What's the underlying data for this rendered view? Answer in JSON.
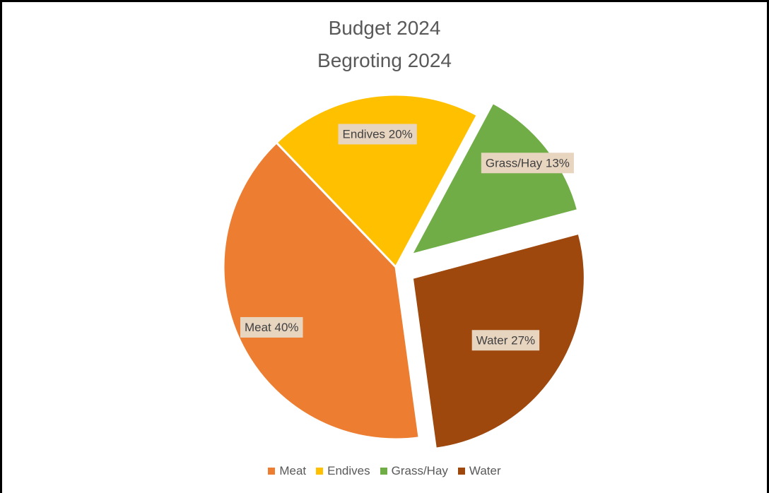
{
  "chart_data": {
    "type": "pie",
    "title": "Budget 2024",
    "subtitle": "Begroting 2024",
    "slices": [
      {
        "name": "Meat",
        "value": 40,
        "label": "Meat 40%",
        "color": "#ED7D31",
        "exploded": false
      },
      {
        "name": "Endives",
        "value": 20,
        "label": "Endives 20%",
        "color": "#FFC000",
        "exploded": false
      },
      {
        "name": "Grass/Hay",
        "value": 13,
        "label": "Grass/Hay 13%",
        "color": "#70AD47",
        "exploded": true
      },
      {
        "name": "Water",
        "value": 27,
        "label": "Water 27%",
        "color": "#9E480E",
        "exploded": true
      }
    ],
    "legend_position": "bottom",
    "label_background": "#E8D5C0"
  }
}
